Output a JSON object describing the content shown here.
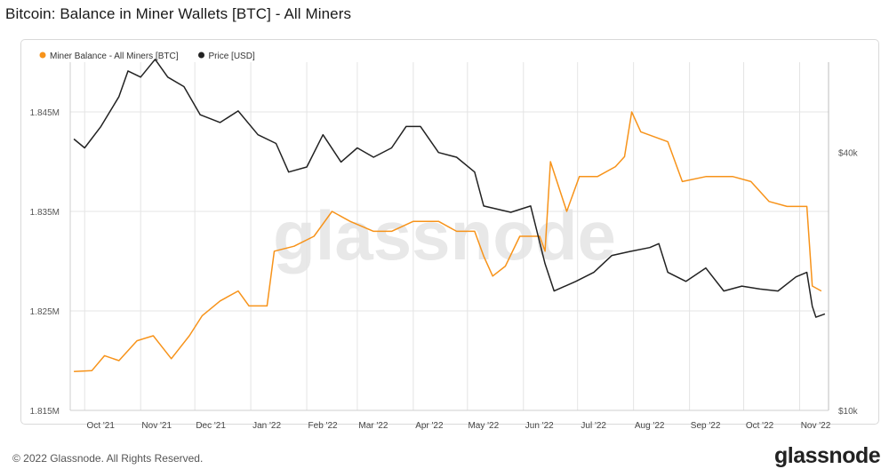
{
  "title": "Bitcoin: Balance in Miner Wallets [BTC] - All Miners",
  "footer": "© 2022 Glassnode. All Rights Reserved.",
  "brand": "glassnode",
  "watermark": "glassnode",
  "colors": {
    "miner": "#f7931a",
    "price": "#222222",
    "grid": "#e4e4e4",
    "watermark": "#e8e8e8"
  },
  "chart_data": {
    "type": "line",
    "legend_position": "top-left",
    "grid": true,
    "x_ticks": [
      "Oct '21",
      "Nov '21",
      "Dec '21",
      "Jan '22",
      "Feb '22",
      "Mar '22",
      "Apr '22",
      "May '22",
      "Jun '22",
      "Jul '22",
      "Aug '22",
      "Sep '22",
      "Oct '22",
      "Nov '22"
    ],
    "y_left": {
      "ticks": [
        "1.815M",
        "1.825M",
        "1.835M",
        "1.845M"
      ],
      "range": [
        1.815,
        1.85
      ],
      "unit": "M BTC"
    },
    "y_right": {
      "ticks": [
        "$10k",
        "$40k"
      ],
      "scale": "log",
      "range": [
        10000,
        65000
      ]
    },
    "series": [
      {
        "name": "Miner Balance - All Miners [BTC]",
        "axis": "left",
        "values": [
          [
            "2021-09-25",
            1.8189
          ],
          [
            "2021-10-05",
            1.819
          ],
          [
            "2021-10-12",
            1.8205
          ],
          [
            "2021-10-20",
            1.82
          ],
          [
            "2021-10-30",
            1.822
          ],
          [
            "2021-11-08",
            1.8225
          ],
          [
            "2021-11-18",
            1.8202
          ],
          [
            "2021-11-28",
            1.8225
          ],
          [
            "2021-12-05",
            1.8245
          ],
          [
            "2021-12-15",
            1.826
          ],
          [
            "2021-12-25",
            1.827
          ],
          [
            "2021-12-31",
            1.8255
          ],
          [
            "2022-01-10",
            1.8255
          ],
          [
            "2022-01-14",
            1.831
          ],
          [
            "2022-01-25",
            1.8315
          ],
          [
            "2022-02-05",
            1.8325
          ],
          [
            "2022-02-15",
            1.835
          ],
          [
            "2022-02-25",
            1.834
          ],
          [
            "2022-03-10",
            1.833
          ],
          [
            "2022-03-20",
            1.833
          ],
          [
            "2022-04-01",
            1.834
          ],
          [
            "2022-04-15",
            1.834
          ],
          [
            "2022-04-25",
            1.833
          ],
          [
            "2022-05-05",
            1.833
          ],
          [
            "2022-05-10",
            1.8305
          ],
          [
            "2022-05-15",
            1.8285
          ],
          [
            "2022-05-22",
            1.8295
          ],
          [
            "2022-05-30",
            1.8325
          ],
          [
            "2022-06-10",
            1.8325
          ],
          [
            "2022-06-13",
            1.831
          ],
          [
            "2022-06-16",
            1.84
          ],
          [
            "2022-06-25",
            1.835
          ],
          [
            "2022-07-02",
            1.8385
          ],
          [
            "2022-07-12",
            1.8385
          ],
          [
            "2022-07-22",
            1.8395
          ],
          [
            "2022-07-27",
            1.8405
          ],
          [
            "2022-07-31",
            1.845
          ],
          [
            "2022-08-05",
            1.843
          ],
          [
            "2022-08-20",
            1.842
          ],
          [
            "2022-08-28",
            1.838
          ],
          [
            "2022-09-10",
            1.8385
          ],
          [
            "2022-09-25",
            1.8385
          ],
          [
            "2022-10-05",
            1.838
          ],
          [
            "2022-10-15",
            1.836
          ],
          [
            "2022-10-25",
            1.8355
          ],
          [
            "2022-11-05",
            1.8355
          ],
          [
            "2022-11-08",
            1.8275
          ],
          [
            "2022-11-13",
            1.827
          ]
        ]
      },
      {
        "name": "Price [USD]",
        "axis": "right",
        "values": [
          [
            "2021-09-25",
            43000
          ],
          [
            "2021-10-01",
            41000
          ],
          [
            "2021-10-10",
            46000
          ],
          [
            "2021-10-20",
            54000
          ],
          [
            "2021-10-25",
            62000
          ],
          [
            "2021-11-01",
            60000
          ],
          [
            "2021-11-09",
            66000
          ],
          [
            "2021-11-16",
            60000
          ],
          [
            "2021-11-25",
            57000
          ],
          [
            "2021-12-04",
            49000
          ],
          [
            "2021-12-15",
            47000
          ],
          [
            "2021-12-25",
            50000
          ],
          [
            "2022-01-05",
            44000
          ],
          [
            "2022-01-15",
            42000
          ],
          [
            "2022-01-22",
            36000
          ],
          [
            "2022-02-01",
            37000
          ],
          [
            "2022-02-10",
            44000
          ],
          [
            "2022-02-20",
            38000
          ],
          [
            "2022-03-01",
            41000
          ],
          [
            "2022-03-10",
            39000
          ],
          [
            "2022-03-20",
            41000
          ],
          [
            "2022-03-28",
            46000
          ],
          [
            "2022-04-05",
            46000
          ],
          [
            "2022-04-15",
            40000
          ],
          [
            "2022-04-25",
            39000
          ],
          [
            "2022-05-05",
            36000
          ],
          [
            "2022-05-10",
            30000
          ],
          [
            "2022-05-25",
            29000
          ],
          [
            "2022-06-05",
            30000
          ],
          [
            "2022-06-13",
            22000
          ],
          [
            "2022-06-18",
            19000
          ],
          [
            "2022-06-30",
            20000
          ],
          [
            "2022-07-10",
            21000
          ],
          [
            "2022-07-20",
            23000
          ],
          [
            "2022-07-30",
            23500
          ],
          [
            "2022-08-10",
            24000
          ],
          [
            "2022-08-15",
            24500
          ],
          [
            "2022-08-20",
            21000
          ],
          [
            "2022-08-30",
            20000
          ],
          [
            "2022-09-10",
            21500
          ],
          [
            "2022-09-20",
            19000
          ],
          [
            "2022-09-30",
            19500
          ],
          [
            "2022-10-10",
            19200
          ],
          [
            "2022-10-20",
            19000
          ],
          [
            "2022-10-30",
            20500
          ],
          [
            "2022-11-05",
            21000
          ],
          [
            "2022-11-08",
            17500
          ],
          [
            "2022-11-10",
            16500
          ],
          [
            "2022-11-15",
            16800
          ]
        ]
      }
    ]
  }
}
